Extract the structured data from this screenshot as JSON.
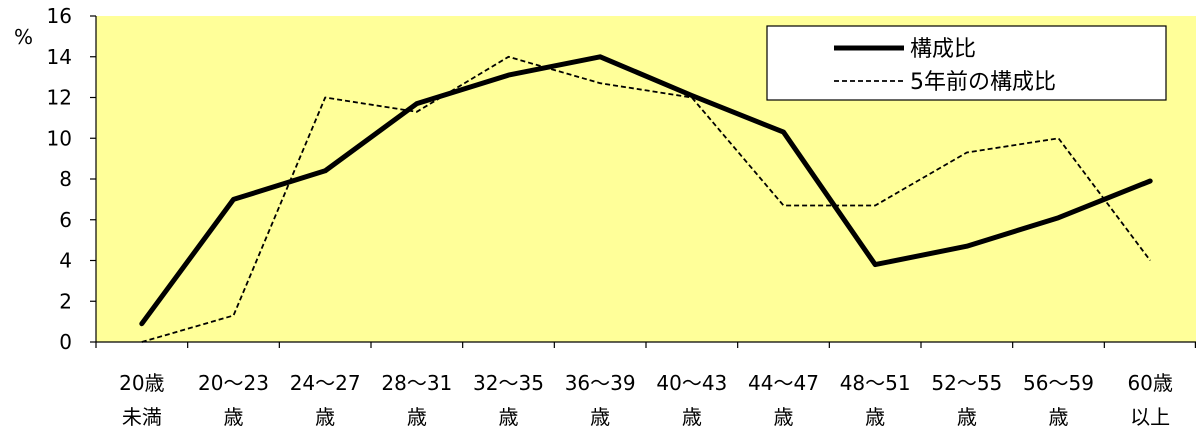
{
  "chart_data": {
    "type": "line",
    "title": "",
    "xlabel": "",
    "ylabel": "%",
    "ylim": [
      0,
      16
    ],
    "yticks": [
      0,
      2,
      4,
      6,
      8,
      10,
      12,
      14,
      16
    ],
    "grid": false,
    "legend_position": "top-right",
    "background_color": "#FFFF99",
    "categories": [
      [
        "20歳",
        "未満"
      ],
      [
        "20～23",
        "歳"
      ],
      [
        "24～27",
        "歳"
      ],
      [
        "28～31",
        "歳"
      ],
      [
        "32～35",
        "歳"
      ],
      [
        "36～39",
        "歳"
      ],
      [
        "40～43",
        "歳"
      ],
      [
        "44～47",
        "歳"
      ],
      [
        "48～51",
        "歳"
      ],
      [
        "52～55",
        "歳"
      ],
      [
        "56～59",
        "歳"
      ],
      [
        "60歳",
        "以上"
      ]
    ],
    "series": [
      {
        "name": "構成比",
        "style": "solid-thick",
        "color": "#000000",
        "values": [
          0.9,
          7.0,
          8.4,
          11.7,
          13.1,
          14.0,
          12.1,
          10.3,
          3.8,
          4.7,
          6.1,
          7.9
        ]
      },
      {
        "name": "5年前の構成比",
        "style": "dashed-thin",
        "color": "#000000",
        "values": [
          0.0,
          1.3,
          12.0,
          11.3,
          14.0,
          12.7,
          12.0,
          6.7,
          6.7,
          9.3,
          10.0,
          4.0
        ]
      }
    ]
  }
}
